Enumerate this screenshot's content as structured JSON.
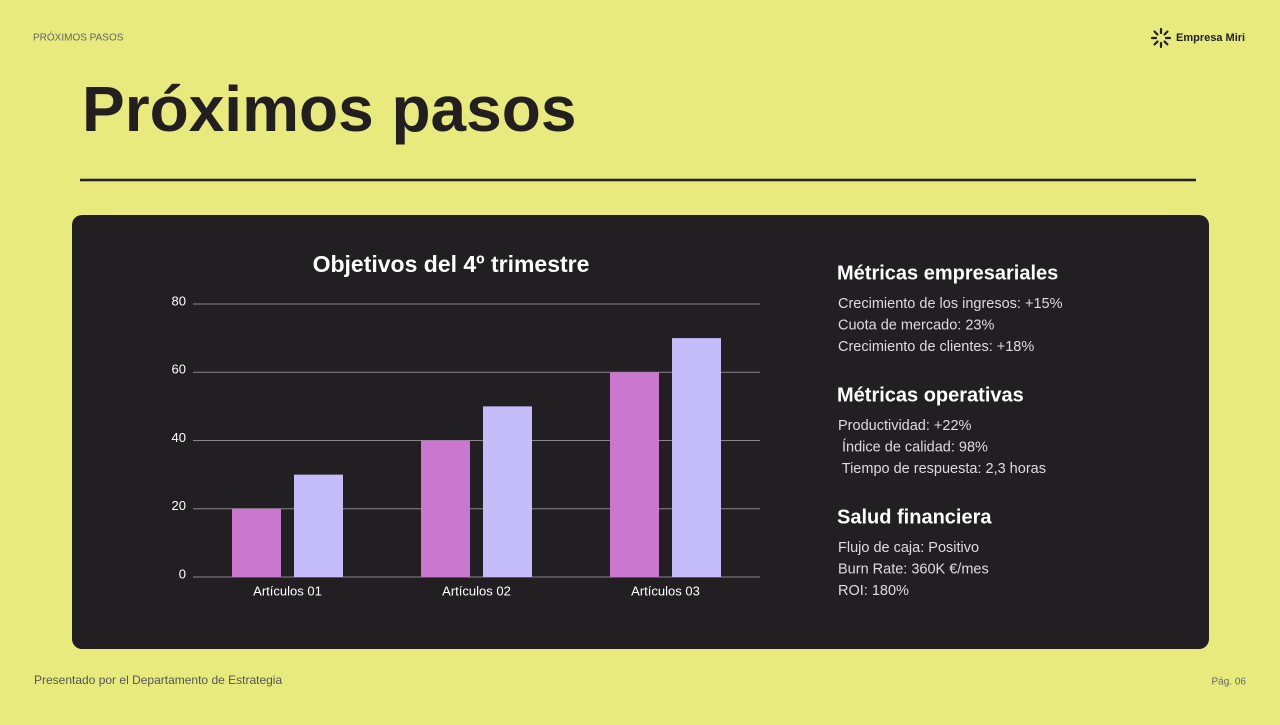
{
  "header": {
    "kicker": "PRÓXIMOS PASOS",
    "brand": "Empresa Miri",
    "title": "Próximos pasos"
  },
  "chart_data": {
    "type": "bar",
    "title": "Objetivos del 4º trimestre",
    "categories": [
      "Artículos 01",
      "Artículos 02",
      "Artículos 03"
    ],
    "series": [
      {
        "color": "#c977cf",
        "values": [
          20,
          40,
          60
        ]
      },
      {
        "color": "#c5bdf9",
        "values": [
          30,
          50,
          70
        ]
      }
    ],
    "ylim": [
      0,
      80
    ],
    "yticks": [
      0,
      20,
      40,
      60,
      80
    ],
    "grid": true
  },
  "metrics": [
    {
      "heading": "Métricas empresariales",
      "items": [
        "Crecimiento de los ingresos: +15%",
        "Cuota de mercado: 23%",
        "Crecimiento de clientes: +18%"
      ]
    },
    {
      "heading": "Métricas operativas",
      "items": [
        "Productividad: +22%",
        " Índice de calidad: 98%",
        " Tiempo de respuesta: 2,3 horas"
      ]
    },
    {
      "heading": "Salud financiera",
      "items": [
        "Flujo de caja: Positivo",
        "Burn Rate: 360K €/mes",
        "ROI: 180%"
      ]
    }
  ],
  "footer": {
    "presenter": "Presentado por el Departamento de Estrategia",
    "page": "Pág. 06"
  }
}
